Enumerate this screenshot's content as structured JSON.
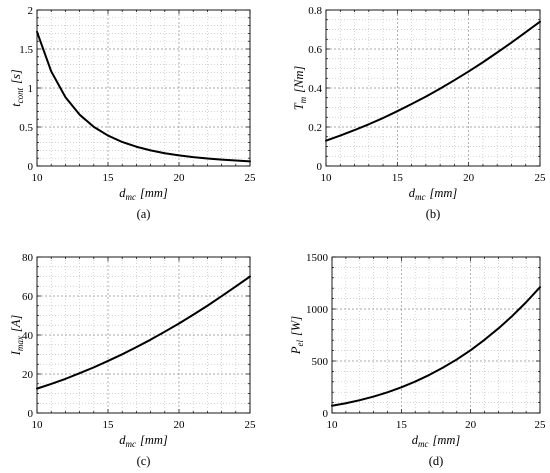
{
  "chart_data": [
    {
      "type": "line",
      "caption": "(a)",
      "xlabel": {
        "symbol": "d",
        "subscript": "mc",
        "unit": "[mm]"
      },
      "ylabel": {
        "symbol": "t",
        "subscript": "cont",
        "unit": "[s]"
      },
      "xlim": [
        10,
        25
      ],
      "ylim": [
        0,
        2
      ],
      "xticks": [
        "10",
        "15",
        "20",
        "25"
      ],
      "yticks": [
        "0",
        "0.5",
        "1",
        "1.5",
        "2"
      ],
      "grid": "major and minor",
      "line_color": "#000000",
      "x": [
        10,
        11,
        12,
        13,
        14,
        15,
        16,
        17,
        18,
        19,
        20,
        21,
        22,
        23,
        24,
        25
      ],
      "series": [
        {
          "values": [
            1.72,
            1.214,
            0.883,
            0.658,
            0.502,
            0.39,
            0.308,
            0.247,
            0.2,
            0.164,
            0.136,
            0.114,
            0.096,
            0.082,
            0.07,
            0.06
          ]
        }
      ]
    },
    {
      "type": "line",
      "caption": "(b)",
      "xlabel": {
        "symbol": "d",
        "subscript": "mc",
        "unit": "[mm]"
      },
      "ylabel": {
        "symbol": "T",
        "subscript": "m",
        "unit": "[Nm]"
      },
      "xlim": [
        10,
        25
      ],
      "ylim": [
        0,
        0.8
      ],
      "xticks": [
        "10",
        "15",
        "20",
        "25"
      ],
      "yticks": [
        "0",
        "0.2",
        "0.4",
        "0.6",
        "0.8"
      ],
      "grid": "major and minor",
      "line_color": "#000000",
      "x": [
        10,
        11,
        12,
        13,
        14,
        15,
        16,
        17,
        18,
        19,
        20,
        21,
        22,
        23,
        24,
        25
      ],
      "series": [
        {
          "values": [
            0.13,
            0.156,
            0.184,
            0.214,
            0.246,
            0.281,
            0.318,
            0.356,
            0.397,
            0.44,
            0.485,
            0.532,
            0.582,
            0.633,
            0.686,
            0.74
          ]
        }
      ]
    },
    {
      "type": "line",
      "caption": "(c)",
      "xlabel": {
        "symbol": "d",
        "subscript": "mc",
        "unit": "[mm]"
      },
      "ylabel": {
        "symbol": "I",
        "subscript": "max",
        "unit": "[A]"
      },
      "xlim": [
        10,
        25
      ],
      "ylim": [
        0,
        80
      ],
      "xticks": [
        "10",
        "15",
        "20",
        "25"
      ],
      "yticks": [
        "0",
        "20",
        "40",
        "60",
        "80"
      ],
      "grid": "major and minor",
      "line_color": "#000000",
      "x": [
        10,
        11,
        12,
        13,
        14,
        15,
        16,
        17,
        18,
        19,
        20,
        21,
        22,
        23,
        24,
        25
      ],
      "series": [
        {
          "values": [
            12.5,
            14.9,
            17.5,
            20.4,
            23.4,
            26.7,
            30.1,
            33.8,
            37.6,
            41.7,
            45.9,
            50.4,
            55.0,
            59.9,
            64.9,
            70.0
          ]
        }
      ]
    },
    {
      "type": "line",
      "caption": "(d)",
      "xlabel": {
        "symbol": "d",
        "subscript": "mc",
        "unit": "[mm]"
      },
      "ylabel": {
        "symbol": "P",
        "subscript": "el",
        "unit": "[W]"
      },
      "xlim": [
        10,
        25
      ],
      "ylim": [
        0,
        1500
      ],
      "xticks": [
        "10",
        "15",
        "20",
        "25"
      ],
      "yticks": [
        "0",
        "500",
        "1000",
        "1500"
      ],
      "grid": "major and minor",
      "line_color": "#000000",
      "x": [
        10,
        11,
        12,
        13,
        14,
        15,
        16,
        17,
        18,
        19,
        20,
        21,
        22,
        23,
        24,
        25
      ],
      "series": [
        {
          "values": [
            70,
            94,
            123,
            158,
            199,
            247,
            302,
            365,
            436,
            515,
            604,
            704,
            813,
            933,
            1065,
            1210
          ]
        }
      ]
    }
  ]
}
